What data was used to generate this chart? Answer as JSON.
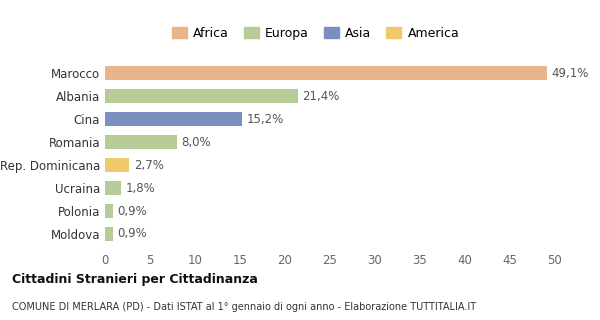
{
  "categories": [
    "Moldova",
    "Polonia",
    "Ucraina",
    "Rep. Dominicana",
    "Romania",
    "Cina",
    "Albania",
    "Marocco"
  ],
  "values": [
    0.9,
    0.9,
    1.8,
    2.7,
    8.0,
    15.2,
    21.4,
    49.1
  ],
  "labels": [
    "0,9%",
    "0,9%",
    "1,8%",
    "2,7%",
    "8,0%",
    "15,2%",
    "21,4%",
    "49,1%"
  ],
  "colors": [
    "#b5cc96",
    "#b5cc96",
    "#b5cc96",
    "#f0c96a",
    "#b5cc96",
    "#7b8ec0",
    "#b5cc96",
    "#e8b48a"
  ],
  "legend_items": [
    {
      "label": "Africa",
      "color": "#e8b48a"
    },
    {
      "label": "Europa",
      "color": "#b5cc96"
    },
    {
      "label": "Asia",
      "color": "#7b8ec0"
    },
    {
      "label": "America",
      "color": "#f0c96a"
    }
  ],
  "xlim": [
    0,
    52
  ],
  "xticks": [
    0,
    5,
    10,
    15,
    20,
    25,
    30,
    35,
    40,
    45,
    50
  ],
  "title_bold": "Cittadini Stranieri per Cittadinanza",
  "subtitle": "COMUNE DI MERLARA (PD) - Dati ISTAT al 1° gennaio di ogni anno - Elaborazione TUTTITALIA.IT",
  "background_color": "#ffffff",
  "bar_height": 0.6,
  "label_fontsize": 8.5,
  "tick_fontsize": 8.5,
  "ytick_fontsize": 8.5
}
